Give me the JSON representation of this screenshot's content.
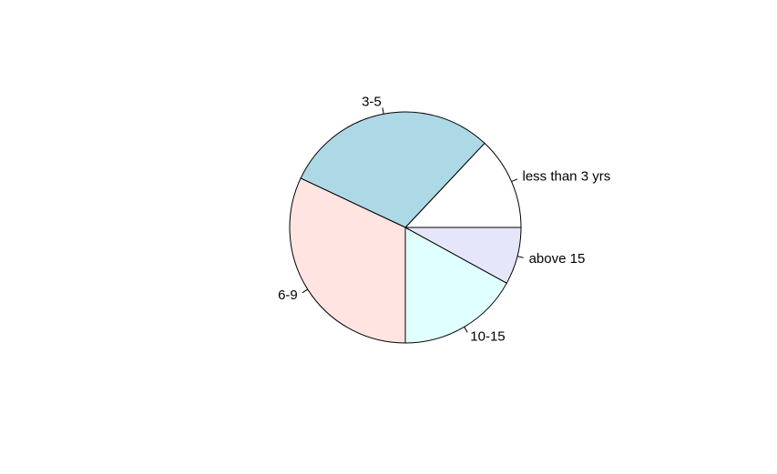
{
  "chart_data": {
    "type": "pie",
    "title": "",
    "slices": [
      {
        "label": "less than 3 yrs",
        "value": 13,
        "color": "#FFFFFF"
      },
      {
        "label": "3-5",
        "value": 30,
        "color": "#ADD8E6"
      },
      {
        "label": "6-9",
        "value": 32,
        "color": "#FFE4E1"
      },
      {
        "label": "10-15",
        "value": 17,
        "color": "#E0FFFF"
      },
      {
        "label": "above 15",
        "value": 8,
        "color": "#E6E6FA"
      }
    ],
    "start_angle_deg": 0,
    "direction": "counterclockwise",
    "border_color": "#000000"
  }
}
